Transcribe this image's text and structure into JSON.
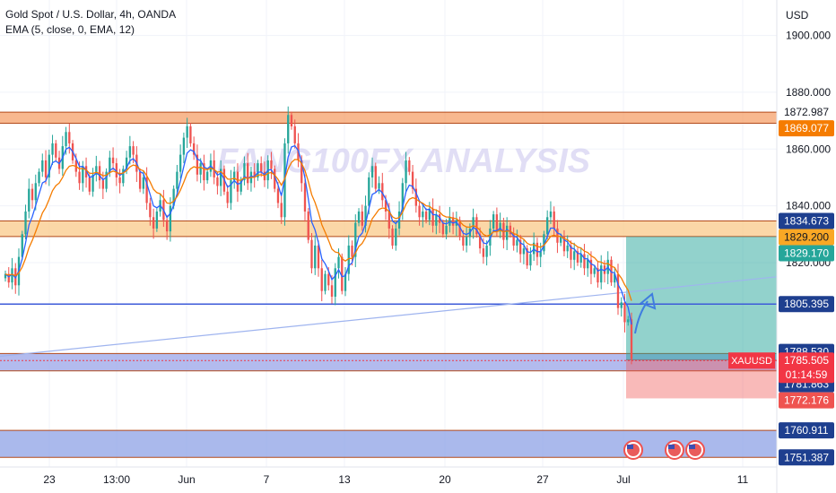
{
  "legend": {
    "title": "Gold Spot / U.S. Dollar, 4h, OANDA",
    "indicator": "EMA (5, close, 0, EMA, 12)"
  },
  "watermark": "FANG100FX ANALYSIS",
  "currency": "USD",
  "chart_data": {
    "type": "candlestick",
    "symbol": "XAUUSD",
    "ylim": [
      1748,
      1912
    ],
    "y_ticks": [
      {
        "value": 1900,
        "label": "1900.000"
      },
      {
        "value": 1880,
        "label": "1880.000"
      },
      {
        "value": 1860,
        "label": "1860.000"
      },
      {
        "value": 1840,
        "label": "1840.000"
      },
      {
        "value": 1820,
        "label": "1820.000"
      }
    ],
    "x_ticks": [
      "23",
      "13:00",
      "Jun",
      "7",
      "13",
      "20",
      "27",
      "Jul",
      "11"
    ],
    "zones": [
      {
        "name": "resistance",
        "from": 1869.077,
        "to": 1872.987,
        "color": "#f5a06a"
      },
      {
        "name": "support-mid",
        "from": 1829.17,
        "to": 1834.673,
        "color": "#f9c98a"
      },
      {
        "name": "buy-zone",
        "from": 1781.863,
        "to": 1788.0,
        "color": "#9aa4e8"
      },
      {
        "name": "lower-zone",
        "from": 1751.387,
        "to": 1760.911,
        "color": "#8ea2e6"
      }
    ],
    "horizontal_lines": [
      1805.395
    ],
    "trendline": {
      "from": 1787,
      "to": 1815
    },
    "position": {
      "target": 1829.2,
      "entry": 1785.753,
      "stop": 1772.176
    },
    "price_labels": [
      {
        "value": 1872.987,
        "label": "1872.987",
        "bg": "#ffffff",
        "fg": "#131722"
      },
      {
        "value": 1869.077,
        "label": "1869.077",
        "bg": "#f57c00",
        "fg": "#ffffff"
      },
      {
        "value": 1834.673,
        "label": "1834.673",
        "bg": "#1e3f8f",
        "fg": "#ffffff"
      },
      {
        "value": 1829.2,
        "label": "1829.200",
        "bg": "#f9a825",
        "fg": "#131722"
      },
      {
        "value": 1829.17,
        "label": "1829.170",
        "bg": "#26a69a",
        "fg": "#ffffff"
      },
      {
        "value": 1805.395,
        "label": "1805.395",
        "bg": "#1e3f8f",
        "fg": "#ffffff"
      },
      {
        "value": 1788.53,
        "label": "1788.530",
        "bg": "#1e3f8f",
        "fg": "#ffffff"
      },
      {
        "value": 1785.753,
        "label": "1785.753",
        "bg": "#787b86",
        "fg": "#ffffff"
      },
      {
        "value": 1781.863,
        "label": "1781.863",
        "bg": "#1e3f8f",
        "fg": "#ffffff"
      },
      {
        "value": 1772.176,
        "label": "1772.176",
        "bg": "#ef5350",
        "fg": "#ffffff"
      },
      {
        "value": 1760.911,
        "label": "1760.911",
        "bg": "#1e3f8f",
        "fg": "#ffffff"
      },
      {
        "value": 1751.387,
        "label": "1751.387",
        "bg": "#1e3f8f",
        "fg": "#ffffff"
      }
    ],
    "current": {
      "symbol": "XAUUSD",
      "price": "1785.505",
      "countdown": "01:14:59",
      "color": "#f23645"
    },
    "colors": {
      "up": "#26a69a",
      "down": "#ef5350",
      "ema_fast": "#2962ff",
      "ema_slow": "#f57c00"
    },
    "series_close": [
      1816,
      1813,
      1818,
      1812,
      1822,
      1830,
      1838,
      1846,
      1842,
      1848,
      1852,
      1856,
      1850,
      1858,
      1862,
      1857,
      1853,
      1861,
      1866,
      1862,
      1856,
      1852,
      1848,
      1854,
      1850,
      1845,
      1851,
      1854,
      1849,
      1846,
      1852,
      1857,
      1855,
      1850,
      1848,
      1853,
      1857,
      1861,
      1858,
      1852,
      1846,
      1850,
      1841,
      1836,
      1832,
      1838,
      1842,
      1835,
      1831,
      1840,
      1846,
      1852,
      1858,
      1864,
      1868,
      1862,
      1858,
      1851,
      1855,
      1849,
      1852,
      1856,
      1850,
      1847,
      1853,
      1845,
      1841,
      1849,
      1852,
      1845,
      1849,
      1855,
      1848,
      1852,
      1850,
      1855,
      1852,
      1849,
      1856,
      1853,
      1846,
      1841,
      1836,
      1862,
      1872,
      1868,
      1862,
      1856,
      1848,
      1838,
      1828,
      1818,
      1826,
      1818,
      1810,
      1816,
      1812,
      1808,
      1818,
      1822,
      1810,
      1816,
      1826,
      1822,
      1834,
      1838,
      1833,
      1840,
      1850,
      1854,
      1846,
      1848,
      1842,
      1838,
      1832,
      1826,
      1832,
      1838,
      1848,
      1856,
      1852,
      1846,
      1840,
      1836,
      1838,
      1835,
      1839,
      1833,
      1837,
      1834,
      1830,
      1833,
      1836,
      1833,
      1835,
      1829,
      1826,
      1829,
      1832,
      1836,
      1830,
      1825,
      1822,
      1826,
      1832,
      1837,
      1831,
      1834,
      1828,
      1833,
      1830,
      1826,
      1828,
      1823,
      1825,
      1819,
      1823,
      1827,
      1822,
      1824,
      1830,
      1836,
      1838,
      1832,
      1827,
      1829,
      1824,
      1826,
      1821,
      1824,
      1820,
      1823,
      1818,
      1821,
      1816,
      1818,
      1813,
      1819,
      1816,
      1821,
      1813,
      1816,
      1804,
      1806,
      1799,
      1800,
      1786
    ],
    "events": [
      {
        "kind": "us-flag"
      },
      {
        "kind": "us-flag"
      },
      {
        "kind": "us-flag"
      }
    ]
  }
}
